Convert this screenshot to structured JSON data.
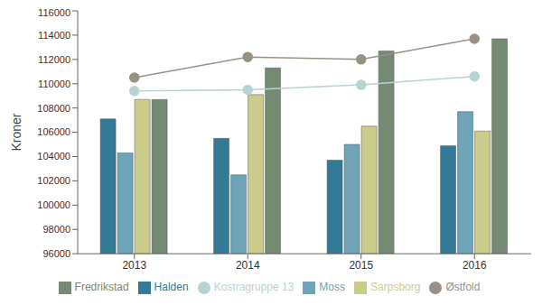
{
  "chart_data": {
    "type": "bar",
    "y_label": "Kroner",
    "categories": [
      "2013",
      "2014",
      "2015",
      "2016"
    ],
    "series": [
      {
        "name": "Halden",
        "type": "bar",
        "color": "#337a96",
        "values": [
          107100,
          105500,
          103700,
          104900
        ]
      },
      {
        "name": "Moss",
        "type": "bar",
        "color": "#6fa3b8",
        "values": [
          104300,
          102500,
          105000,
          107700
        ]
      },
      {
        "name": "Sarpsborg",
        "type": "bar",
        "color": "#cccc8a",
        "values": [
          108700,
          109100,
          106500,
          106100
        ]
      },
      {
        "name": "Fredrikstad",
        "type": "bar",
        "color": "#748a72",
        "values": [
          108700,
          111300,
          112700,
          113700
        ]
      },
      {
        "name": "Østfold",
        "type": "line",
        "marker": "circle",
        "color": "#999184",
        "values": [
          110500,
          112200,
          112000,
          113700
        ]
      },
      {
        "name": "Kostragruppe 13",
        "type": "line",
        "marker": "circle",
        "color": "#b7d3d3",
        "values": [
          109400,
          109500,
          109900,
          110600
        ]
      }
    ],
    "ylim": [
      96000,
      116000
    ],
    "yticks": [
      96000,
      98000,
      100000,
      102000,
      104000,
      106000,
      108000,
      110000,
      112000,
      114000,
      116000
    ],
    "grid": false,
    "legend": "bottom"
  }
}
